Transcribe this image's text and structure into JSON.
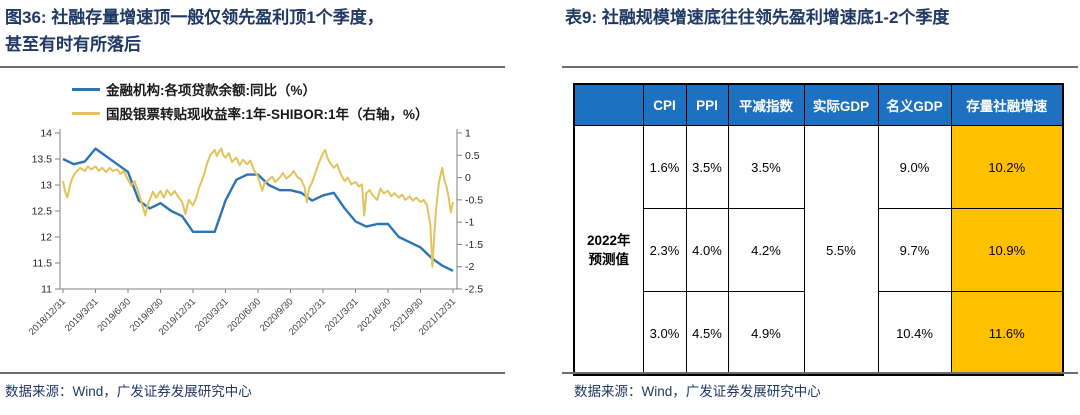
{
  "left_panel": {
    "title_line1": "图36: 社融存量增速顶一般仅领先盈利顶1个季度，",
    "title_line2": "甚至有时有所落后",
    "source": "数据来源：Wind，广发证券发展研究中心"
  },
  "right_panel": {
    "title": "表9: 社融规模增速底往往领先盈利增速底1-2个季度",
    "source": "数据来源：Wind，广发证券发展研究中心",
    "table": {
      "header": [
        "",
        "CPI",
        "PPI",
        "平减指数",
        "实际GDP",
        "名义GDP",
        "存量社融增速"
      ],
      "row_label_line1": "2022年",
      "row_label_line2": "预测值",
      "real_gdp_merged": "5.5%",
      "rows": [
        [
          "1.6%",
          "3.5%",
          "3.5%",
          "9.0%",
          "10.2%"
        ],
        [
          "2.3%",
          "4.0%",
          "4.2%",
          "9.7%",
          "10.9%"
        ],
        [
          "3.0%",
          "4.5%",
          "4.9%",
          "10.4%",
          "11.6%"
        ]
      ]
    }
  },
  "chart_data": {
    "type": "line",
    "title": "",
    "xlabel": "",
    "ylabel": "",
    "grid": false,
    "legend_position": "top-left",
    "x_range": [
      0,
      36
    ],
    "x_unit": "months from 2018/12",
    "x_tick_labels": [
      "2018/12/31",
      "2019/3/31",
      "2019/6/30",
      "2019/9/30",
      "2019/12/31",
      "2020/3/31",
      "2020/6/30",
      "2020/9/30",
      "2020/12/31",
      "2021/3/31",
      "2021/6/30",
      "2021/9/30",
      "2021/12/31"
    ],
    "left_axis": {
      "min": 11,
      "max": 14,
      "ticks": [
        14,
        13.5,
        13,
        12.5,
        12,
        11.5,
        11
      ]
    },
    "right_axis": {
      "min": -2.5,
      "max": 1,
      "ticks": [
        1,
        0.5,
        0,
        -0.5,
        -1,
        -1.5,
        -2,
        -2.5
      ]
    },
    "series": [
      {
        "name": "金融机构:各项贷款余额:同比（%）",
        "axis": "left",
        "color": "#2E74B5",
        "x_step": 1,
        "values": [
          13.5,
          13.4,
          13.45,
          13.7,
          13.55,
          13.4,
          13.25,
          12.7,
          12.55,
          12.65,
          12.5,
          12.4,
          12.1,
          12.1,
          12.1,
          12.7,
          13.1,
          13.2,
          13.2,
          13.0,
          12.9,
          12.9,
          12.85,
          12.7,
          12.8,
          12.85,
          12.55,
          12.3,
          12.2,
          12.25,
          12.25,
          12.0,
          11.9,
          11.8,
          11.6,
          11.45,
          11.35
        ]
      },
      {
        "name": "国股银票转贴现收益率:1年-SHIBOR:1年（右轴，%）",
        "axis": "right",
        "color": "#E2C35C",
        "points": [
          [
            0,
            -0.08
          ],
          [
            0.2,
            -0.32
          ],
          [
            0.4,
            -0.45
          ],
          [
            0.6,
            -0.22
          ],
          [
            0.8,
            -0.05
          ],
          [
            1,
            0.05
          ],
          [
            1.3,
            0.15
          ],
          [
            1.6,
            0.22
          ],
          [
            2,
            0.15
          ],
          [
            2.3,
            0.25
          ],
          [
            2.6,
            0.18
          ],
          [
            3,
            0.25
          ],
          [
            3.3,
            0.15
          ],
          [
            3.6,
            0.22
          ],
          [
            4,
            0.12
          ],
          [
            4.3,
            0.22
          ],
          [
            4.6,
            0.15
          ],
          [
            5,
            0.18
          ],
          [
            5.3,
            0.08
          ],
          [
            5.6,
            0.15
          ],
          [
            6,
            -0.05
          ],
          [
            6.3,
            -0.18
          ],
          [
            6.6,
            -0.08
          ],
          [
            7,
            -0.35
          ],
          [
            7.3,
            -0.6
          ],
          [
            7.6,
            -0.85
          ],
          [
            7.8,
            -0.62
          ],
          [
            8,
            -0.5
          ],
          [
            8.3,
            -0.32
          ],
          [
            8.6,
            -0.45
          ],
          [
            9,
            -0.3
          ],
          [
            9.3,
            -0.45
          ],
          [
            9.6,
            -0.28
          ],
          [
            10,
            -0.4
          ],
          [
            10.3,
            -0.3
          ],
          [
            10.6,
            -0.42
          ],
          [
            11,
            -0.55
          ],
          [
            11.3,
            -0.82
          ],
          [
            11.6,
            -0.5
          ],
          [
            12,
            -0.62
          ],
          [
            12.3,
            -0.45
          ],
          [
            12.6,
            -0.2
          ],
          [
            13,
            0.05
          ],
          [
            13.3,
            0.32
          ],
          [
            13.6,
            0.5
          ],
          [
            14,
            0.62
          ],
          [
            14.2,
            0.48
          ],
          [
            14.4,
            0.58
          ],
          [
            14.6,
            0.65
          ],
          [
            14.8,
            0.5
          ],
          [
            15,
            0.45
          ],
          [
            15.3,
            0.55
          ],
          [
            15.6,
            0.35
          ],
          [
            16,
            0.45
          ],
          [
            16.3,
            0.28
          ],
          [
            16.6,
            0.4
          ],
          [
            17,
            0.3
          ],
          [
            17.3,
            0.38
          ],
          [
            17.6,
            0.18
          ],
          [
            18,
            0.02
          ],
          [
            18.2,
            -0.15
          ],
          [
            18.4,
            -0.3
          ],
          [
            18.6,
            -0.12
          ],
          [
            19,
            -0.05
          ],
          [
            19.3,
            0.02
          ],
          [
            19.6,
            -0.1
          ],
          [
            20,
            0.0
          ],
          [
            20.3,
            0.1
          ],
          [
            20.6,
            -0.02
          ],
          [
            21,
            0.05
          ],
          [
            21.3,
            0.15
          ],
          [
            21.6,
            0.02
          ],
          [
            22,
            -0.05
          ],
          [
            22.3,
            -0.22
          ],
          [
            22.5,
            -0.55
          ],
          [
            22.7,
            -0.25
          ],
          [
            23,
            -0.1
          ],
          [
            23.3,
            0.1
          ],
          [
            23.6,
            0.32
          ],
          [
            24,
            0.55
          ],
          [
            24.2,
            0.62
          ],
          [
            24.4,
            0.45
          ],
          [
            24.6,
            0.35
          ],
          [
            25,
            0.22
          ],
          [
            25.3,
            0.3
          ],
          [
            25.6,
            0.1
          ],
          [
            26,
            -0.08
          ],
          [
            26.3,
            0.0
          ],
          [
            26.6,
            -0.15
          ],
          [
            27,
            -0.1
          ],
          [
            27.3,
            -0.2
          ],
          [
            27.6,
            -0.15
          ],
          [
            27.8,
            -0.85
          ],
          [
            28,
            -0.35
          ],
          [
            28.3,
            -0.28
          ],
          [
            28.6,
            -0.4
          ],
          [
            29,
            -0.5
          ],
          [
            29.3,
            -0.25
          ],
          [
            29.6,
            -0.35
          ],
          [
            30,
            -0.3
          ],
          [
            30.3,
            -0.42
          ],
          [
            30.6,
            -0.35
          ],
          [
            31,
            -0.45
          ],
          [
            31.3,
            -0.38
          ],
          [
            31.6,
            -0.5
          ],
          [
            32,
            -0.42
          ],
          [
            32.3,
            -0.52
          ],
          [
            32.6,
            -0.45
          ],
          [
            33,
            -0.55
          ],
          [
            33.3,
            -0.5
          ],
          [
            33.6,
            -0.62
          ],
          [
            33.9,
            -1.05
          ],
          [
            34.1,
            -2.0
          ],
          [
            34.4,
            -0.8
          ],
          [
            34.7,
            -0.12
          ],
          [
            35,
            0.22
          ],
          [
            35.2,
            -0.05
          ],
          [
            35.4,
            -0.2
          ],
          [
            35.6,
            -0.45
          ],
          [
            35.8,
            -0.78
          ],
          [
            36,
            -0.55
          ]
        ]
      }
    ]
  },
  "colors": {
    "title_navy": "#1F3864",
    "source_navy": "#1F3864",
    "table_header_blue": "#1E70C1",
    "highlight_gold": "#FFC000",
    "loan_line_blue": "#2E74B5",
    "shibor_line_yellow": "#E2C35C",
    "rule_gray": "#6e6e6e"
  }
}
